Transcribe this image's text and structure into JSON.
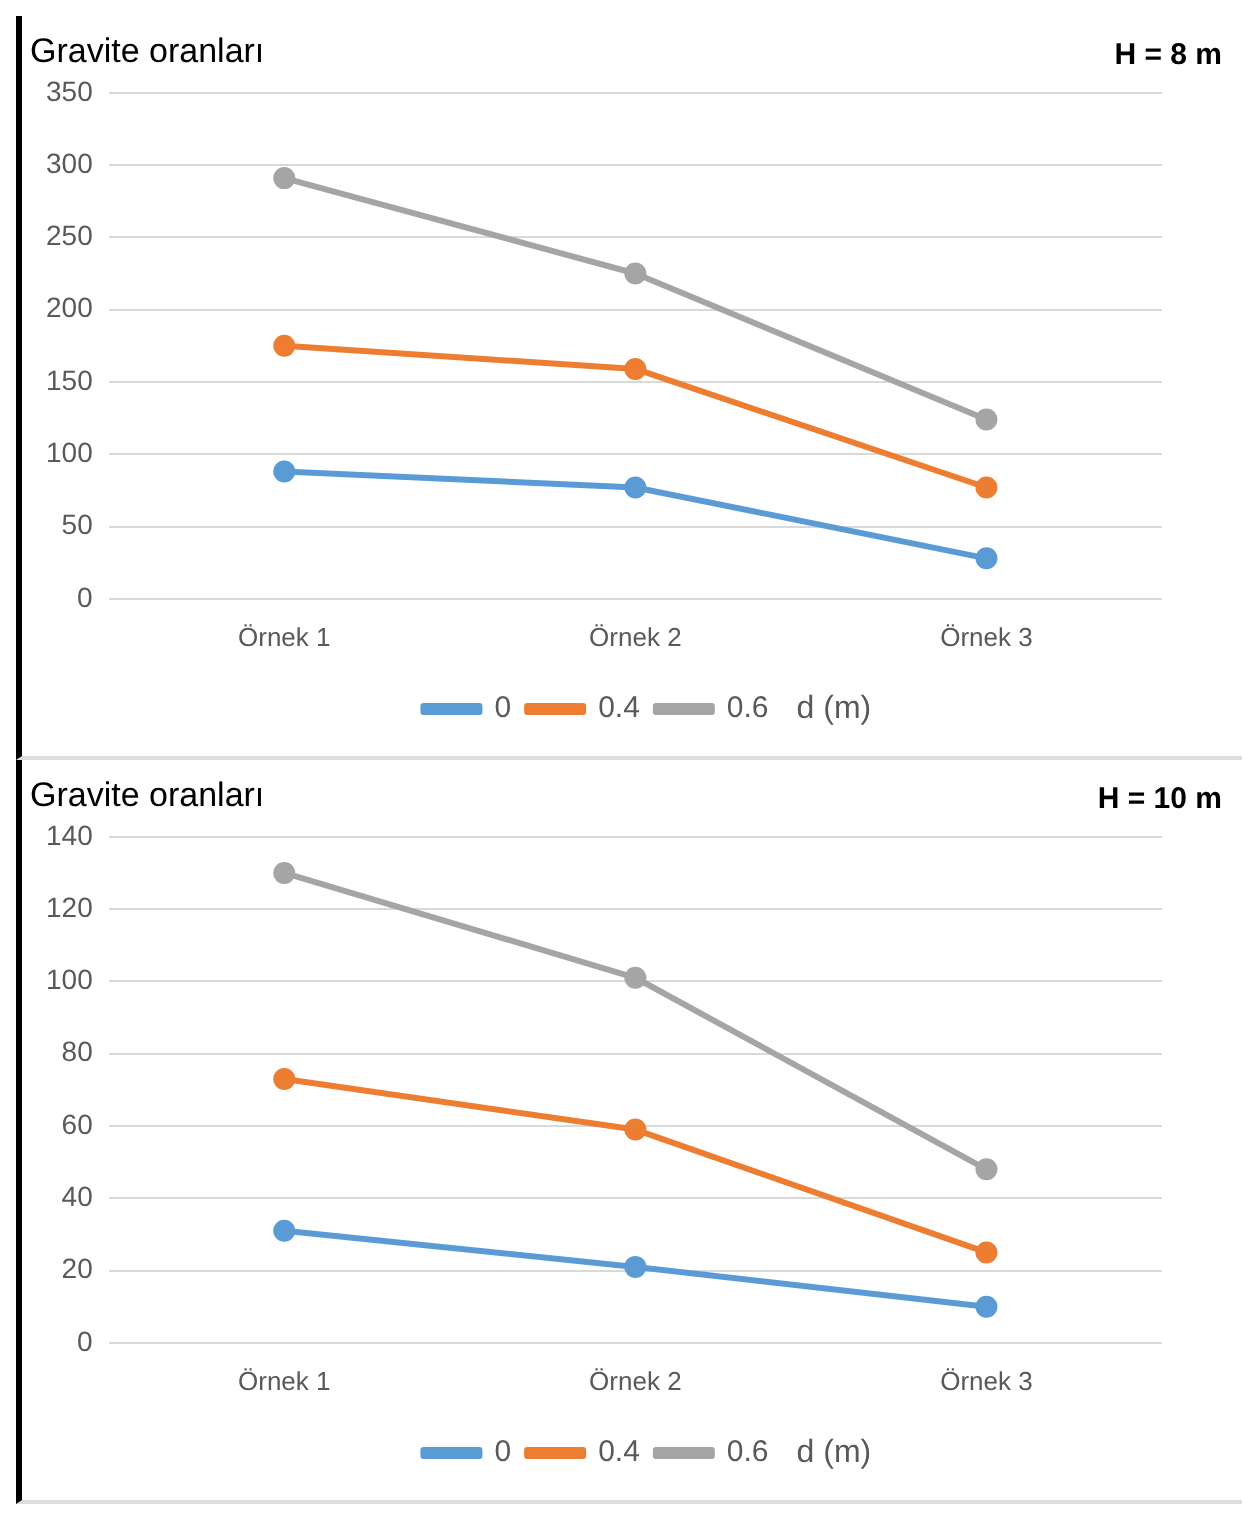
{
  "chart_data": [
    {
      "type": "line",
      "title": "Gravite oranları",
      "annotations": [
        "H = 8 m"
      ],
      "legend_title": "d (m)",
      "categories": [
        "Örnek 1",
        "Örnek 2",
        "Örnek 3"
      ],
      "series": [
        {
          "name": "0",
          "color": "#5b9bd5",
          "values": [
            88,
            77,
            28
          ]
        },
        {
          "name": "0.4",
          "color": "#ed7d31",
          "values": [
            175,
            159,
            77
          ]
        },
        {
          "name": "0.6",
          "color": "#a5a5a5",
          "values": [
            291,
            225,
            124
          ]
        }
      ],
      "ylim": [
        0,
        350
      ],
      "yticks": [
        0,
        50,
        100,
        150,
        200,
        250,
        300,
        350
      ],
      "grid": "y",
      "legend": "bottom",
      "marker": "circle",
      "line_style": "solid"
    },
    {
      "type": "line",
      "title": "Gravite oranları",
      "annotations": [
        "H = 10 m"
      ],
      "legend_title": "d (m)",
      "categories": [
        "Örnek 1",
        "Örnek 2",
        "Örnek 3"
      ],
      "series": [
        {
          "name": "0",
          "color": "#5b9bd5",
          "values": [
            31,
            21,
            10
          ]
        },
        {
          "name": "0.4",
          "color": "#ed7d31",
          "values": [
            73,
            59,
            25
          ]
        },
        {
          "name": "0.6",
          "color": "#a5a5a5",
          "values": [
            130,
            101,
            48
          ]
        }
      ],
      "ylim": [
        0,
        140
      ],
      "yticks": [
        0,
        20,
        40,
        60,
        80,
        100,
        120,
        140
      ],
      "grid": "y",
      "legend": "bottom",
      "marker": "circle",
      "line_style": "solid"
    }
  ]
}
